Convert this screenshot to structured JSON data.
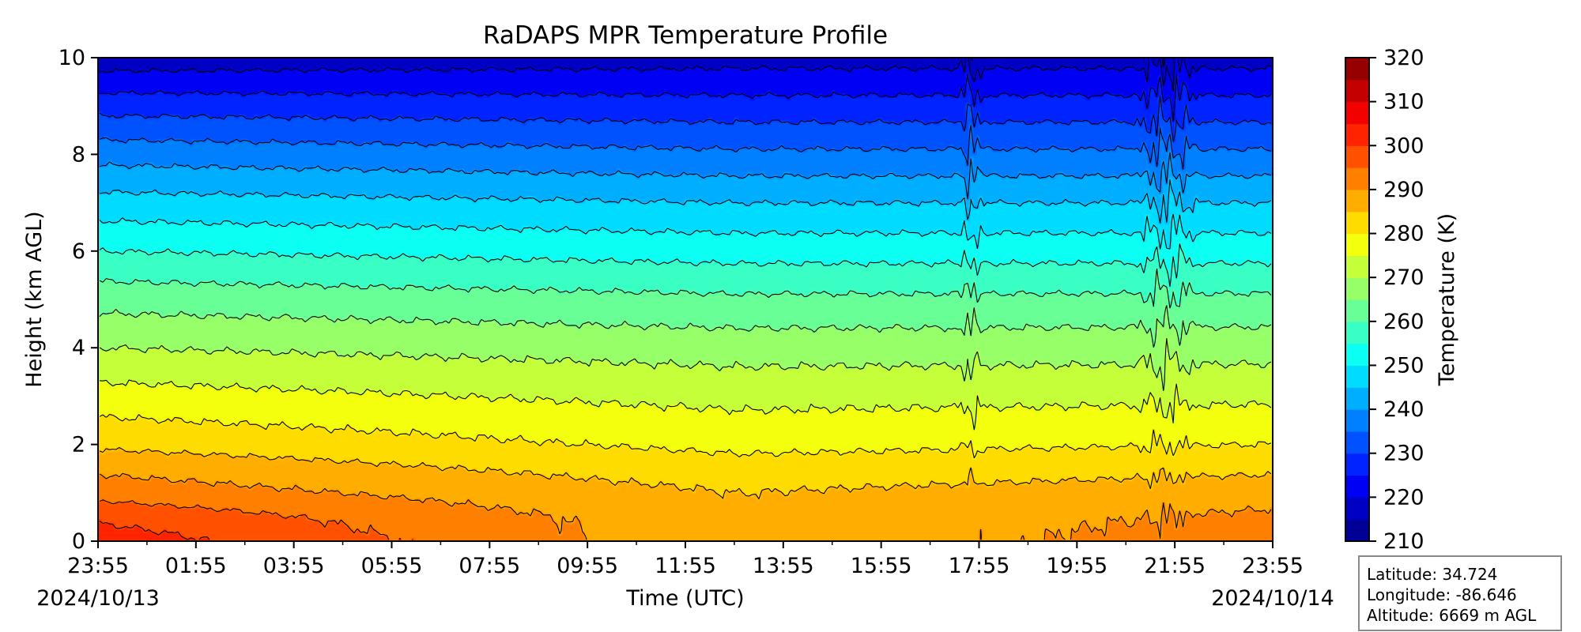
{
  "chart_data": {
    "type": "heatmap",
    "title": "RaDAPS MPR Temperature Profile",
    "xlabel": "Time (UTC)",
    "ylabel": "Height (km AGL)",
    "x_ticks": [
      "23:55",
      "01:55",
      "03:55",
      "05:55",
      "07:55",
      "09:55",
      "11:55",
      "13:55",
      "15:55",
      "17:55",
      "19:55",
      "21:55",
      "23:55"
    ],
    "x_start_date": "2024/10/13",
    "x_end_date": "2024/10/14",
    "y_ticks": [
      0,
      2,
      4,
      6,
      8,
      10
    ],
    "ylim": [
      0,
      10
    ],
    "colorbar": {
      "label": "Temperature (K)",
      "range": [
        210,
        320
      ],
      "ticks": [
        210,
        220,
        230,
        240,
        250,
        260,
        270,
        280,
        290,
        300,
        310,
        320
      ],
      "levels": [
        210,
        215,
        220,
        225,
        230,
        235,
        240,
        245,
        250,
        255,
        260,
        265,
        270,
        275,
        280,
        285,
        290,
        295,
        300,
        305,
        310,
        315,
        320
      ],
      "colormap": "jet"
    },
    "profile_start": {
      "heights_km": [
        0,
        0.5,
        1,
        1.5,
        2,
        3,
        4,
        5,
        6,
        7,
        8,
        9,
        10
      ],
      "temperatures_k": [
        303,
        299,
        293,
        289,
        284,
        277,
        270,
        263,
        255,
        247,
        238,
        228,
        217
      ]
    },
    "profile_min_surface": {
      "time": "13:00",
      "surface_temperature_k": 286
    },
    "profile_end": {
      "heights_km": [
        0,
        0.5,
        1,
        1.5,
        2,
        3,
        4,
        5,
        6,
        7,
        8,
        9,
        10
      ],
      "temperatures_k": [
        293,
        291,
        288,
        284,
        280,
        274,
        268,
        261,
        253,
        245,
        236,
        227,
        218
      ]
    },
    "disturbed_periods": [
      {
        "start": "17:30",
        "end": "18:00"
      },
      {
        "start": "21:05",
        "end": "22:25"
      }
    ]
  },
  "station": {
    "latitude_text": "Latitude: 34.724",
    "longitude_text": "Longitude: -86.646",
    "altitude_text": "Altitude: 6669 m AGL"
  }
}
